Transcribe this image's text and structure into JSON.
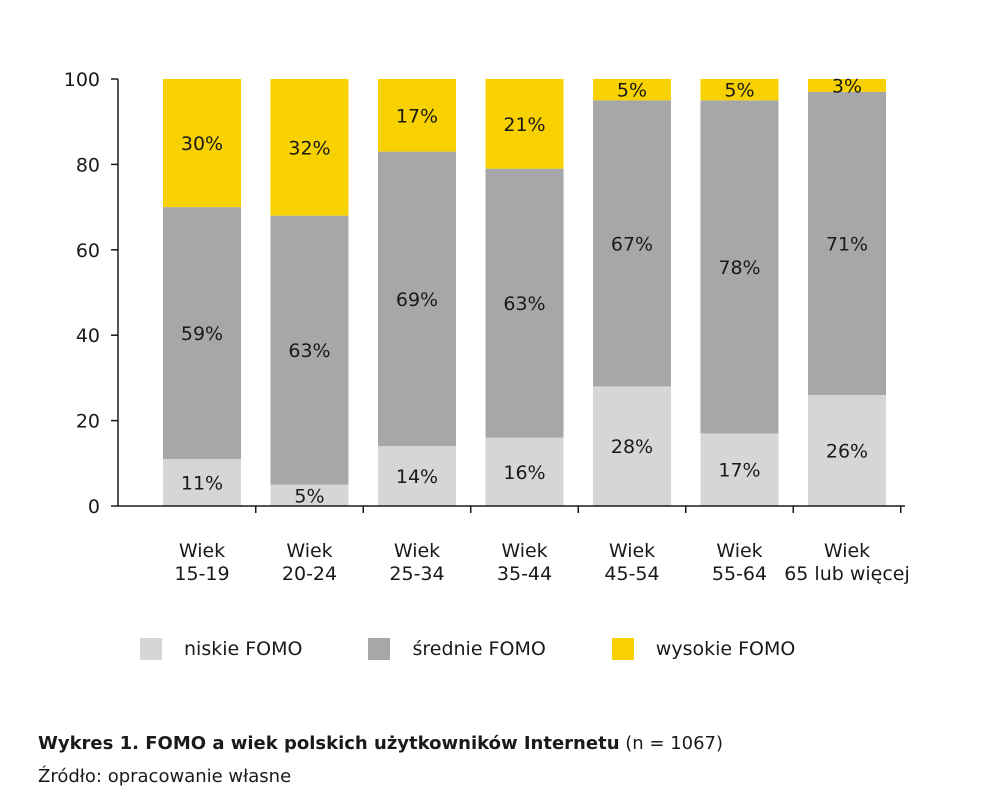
{
  "chart_data": {
    "type": "bar",
    "stacked": true,
    "ylim": [
      0,
      100
    ],
    "yticks": [
      0,
      20,
      40,
      60,
      80,
      100
    ],
    "categories": [
      [
        "Wiek",
        "15-19"
      ],
      [
        "Wiek",
        "20-24"
      ],
      [
        "Wiek",
        "25-34"
      ],
      [
        "Wiek",
        "35-44"
      ],
      [
        "Wiek",
        "45-54"
      ],
      [
        "Wiek",
        "55-64"
      ],
      [
        "Wiek",
        "65 lub więcej"
      ]
    ],
    "series": [
      {
        "name": "niskie FOMO",
        "color": "#d6d6d8",
        "values": [
          11,
          5,
          14,
          16,
          28,
          17,
          26
        ]
      },
      {
        "name": "średnie FOMO",
        "color": "#a7a7aa",
        "values": [
          59,
          63,
          69,
          63,
          67,
          78,
          71
        ]
      },
      {
        "name": "wysokie FOMO",
        "color": "#f7d200",
        "values": [
          30,
          32,
          17,
          21,
          5,
          5,
          3
        ]
      }
    ],
    "legend_position": "bottom",
    "grid": false
  },
  "caption": {
    "bold": "Wykres 1. FOMO a wiek polskich użytkowników Internetu",
    "rest": " (n = 1067)"
  },
  "source": "Źródło: opracowanie własne"
}
